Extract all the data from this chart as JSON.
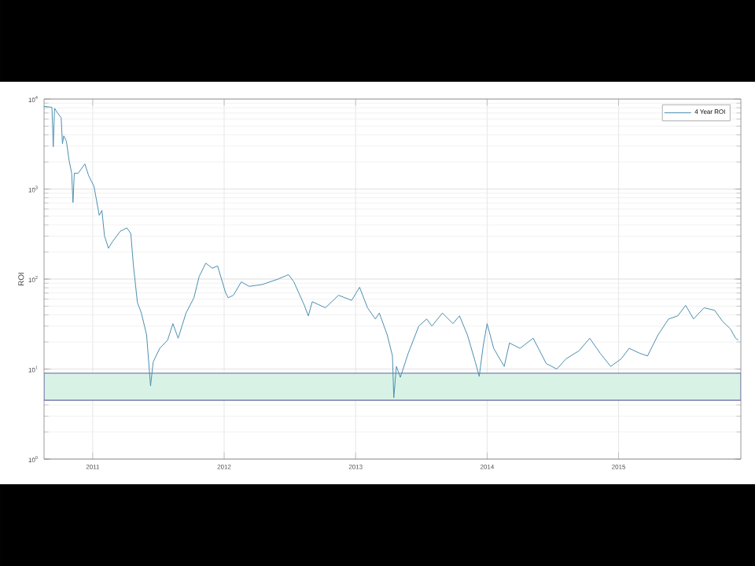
{
  "chart_data": {
    "type": "line",
    "ylabel": "ROI",
    "log": "y",
    "grid": true,
    "legend": "top right",
    "xlim": [
      2010.63,
      2015.93
    ],
    "xticks": [
      2011,
      2012,
      2013,
      2014,
      2015
    ],
    "ylim": [
      1,
      10000
    ],
    "yticks": [
      {
        "value": 1,
        "label": "10$^{0}$"
      },
      {
        "value": 10,
        "label": "10$^{1}$"
      },
      {
        "value": 100,
        "label": "10$^{2}$"
      },
      {
        "value": 1000,
        "label": "10$^{3}$"
      },
      {
        "value": 10000,
        "label": "10$^{4}$"
      }
    ],
    "bands": [
      {
        "axis": "y",
        "from": 4.5,
        "to": 9,
        "color": "#d8f3e6"
      }
    ],
    "series": [
      {
        "name": "4 Year ROI",
        "color": "#4a8fb0",
        "x": [
          2010.63,
          2010.69,
          2010.7,
          2010.71,
          2010.73,
          2010.76,
          2010.77,
          2010.78,
          2010.8,
          2010.82,
          2010.84,
          2010.85,
          2010.86,
          2010.89,
          2010.94,
          2010.97,
          2011.01,
          2011.05,
          2011.07,
          2011.09,
          2011.12,
          2011.15,
          2011.21,
          2011.26,
          2011.29,
          2011.31,
          2011.34,
          2011.37,
          2011.41,
          2011.44,
          2011.46,
          2011.51,
          2011.57,
          2011.61,
          2011.65,
          2011.71,
          2011.77,
          2011.81,
          2011.86,
          2011.91,
          2011.95,
          2012.01,
          2012.03,
          2012.07,
          2012.13,
          2012.19,
          2012.29,
          2012.41,
          2012.49,
          2012.53,
          2012.61,
          2012.64,
          2012.67,
          2012.77,
          2012.87,
          2012.97,
          2013.03,
          2013.09,
          2013.15,
          2013.18,
          2013.24,
          2013.28,
          2013.29,
          2013.31,
          2013.34,
          2013.4,
          2013.48,
          2013.54,
          2013.58,
          2013.66,
          2013.74,
          2013.79,
          2013.85,
          2013.91,
          2013.94,
          2013.97,
          2014.0,
          2014.05,
          2014.13,
          2014.17,
          2014.25,
          2014.35,
          2014.39,
          2014.45,
          2014.53,
          2014.6,
          2014.7,
          2014.78,
          2014.86,
          2014.94,
          2015.02,
          2015.08,
          2015.16,
          2015.22,
          2015.3,
          2015.38,
          2015.45,
          2015.51,
          2015.57,
          2015.65,
          2015.73,
          2015.79,
          2015.85,
          2015.89,
          2015.91
        ],
        "values": [
          8300,
          8100,
          2950,
          7900,
          7100,
          6200,
          3200,
          3900,
          3400,
          2100,
          1500,
          710,
          1500,
          1500,
          1900,
          1400,
          1070,
          510,
          580,
          300,
          220,
          260,
          340,
          370,
          320,
          140,
          55,
          42,
          24,
          6.5,
          12,
          17,
          21,
          32,
          22,
          42,
          62,
          107,
          150,
          132,
          140,
          71,
          62,
          66,
          93,
          83,
          87,
          100,
          112,
          93,
          51,
          39,
          56,
          48,
          66,
          58,
          81,
          48,
          36,
          42,
          24,
          14,
          4.8,
          10.7,
          8.1,
          15,
          30,
          36,
          30,
          42,
          32,
          39,
          24,
          12,
          8.3,
          18,
          32,
          17,
          10.7,
          19.5,
          17,
          22,
          17,
          11.5,
          10,
          13,
          16,
          22,
          15,
          10.7,
          13,
          17,
          15,
          14,
          24,
          36,
          39,
          51,
          36,
          48,
          45,
          34,
          28,
          22,
          21
        ]
      }
    ]
  }
}
